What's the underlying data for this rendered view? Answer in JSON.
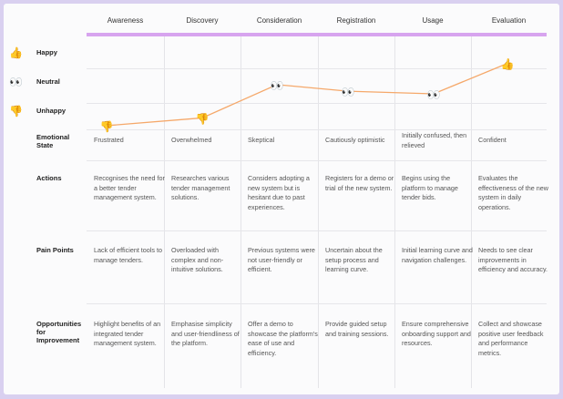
{
  "stages": [
    "Awareness",
    "Discovery",
    "Consideration",
    "Registration",
    "Usage",
    "Evaluation"
  ],
  "legend": [
    {
      "label": "Happy",
      "icon": "thumbs-up-icon",
      "glyph": "👍"
    },
    {
      "label": "Neutral",
      "icon": "eyes-icon",
      "glyph": "👀"
    },
    {
      "label": "Unhappy",
      "icon": "thumbs-down-icon",
      "glyph": "👎"
    }
  ],
  "colors": {
    "accent_bar": "#d7a4ef",
    "line": "#f5a86a",
    "background": "#d9d0f0"
  },
  "emotion_curve": [
    {
      "stage": "Awareness",
      "emotion": "unhappy",
      "score": -0.57
    },
    {
      "stage": "Discovery",
      "emotion": "unhappy",
      "score": -0.3
    },
    {
      "stage": "Consideration",
      "emotion": "neutral",
      "score": 0.86
    },
    {
      "stage": "Registration",
      "emotion": "neutral",
      "score": 0.63
    },
    {
      "stage": "Usage",
      "emotion": "neutral",
      "score": 0.54
    },
    {
      "stage": "Evaluation",
      "emotion": "happy",
      "score": 1.6
    }
  ],
  "rows": [
    {
      "label": "Emotional State",
      "cells": [
        "Frustrated",
        "Overwhelmed",
        "Skeptical",
        "Cautiously optimistic",
        "Initially confused, then relieved",
        "Confident"
      ]
    },
    {
      "label": "Actions",
      "cells": [
        "Recognises the need for a better tender management system.",
        "Researches various tender management solutions.",
        "Considers adopting a new system but is hesitant due to past experiences.",
        "Registers for a demo or trial of the new system.",
        "Begins using the platform to manage tender bids.",
        "Evaluates the effectiveness of the new system in daily operations."
      ]
    },
    {
      "label": "Pain Points",
      "cells": [
        "Lack of efficient tools to manage tenders.",
        "Overloaded with complex and non-intuitive solutions.",
        "Previous systems were not user-friendly or efficient.",
        "Uncertain about the setup process and learning curve.",
        "Initial learning curve and navigation challenges.",
        "Needs to see clear improvements in efficiency and accuracy."
      ]
    },
    {
      "label": "Opportunities for Improvement",
      "cells": [
        "Highlight benefits of an integrated tender management system.",
        "Emphasise simplicity and user-friendliness of the platform.",
        "Offer a demo to showcase the platform's ease of use and efficiency.",
        "Provide guided setup and training sessions.",
        "Ensure comprehensive onboarding support and resources.",
        "Collect and showcase positive user feedback and performance metrics."
      ]
    }
  ]
}
